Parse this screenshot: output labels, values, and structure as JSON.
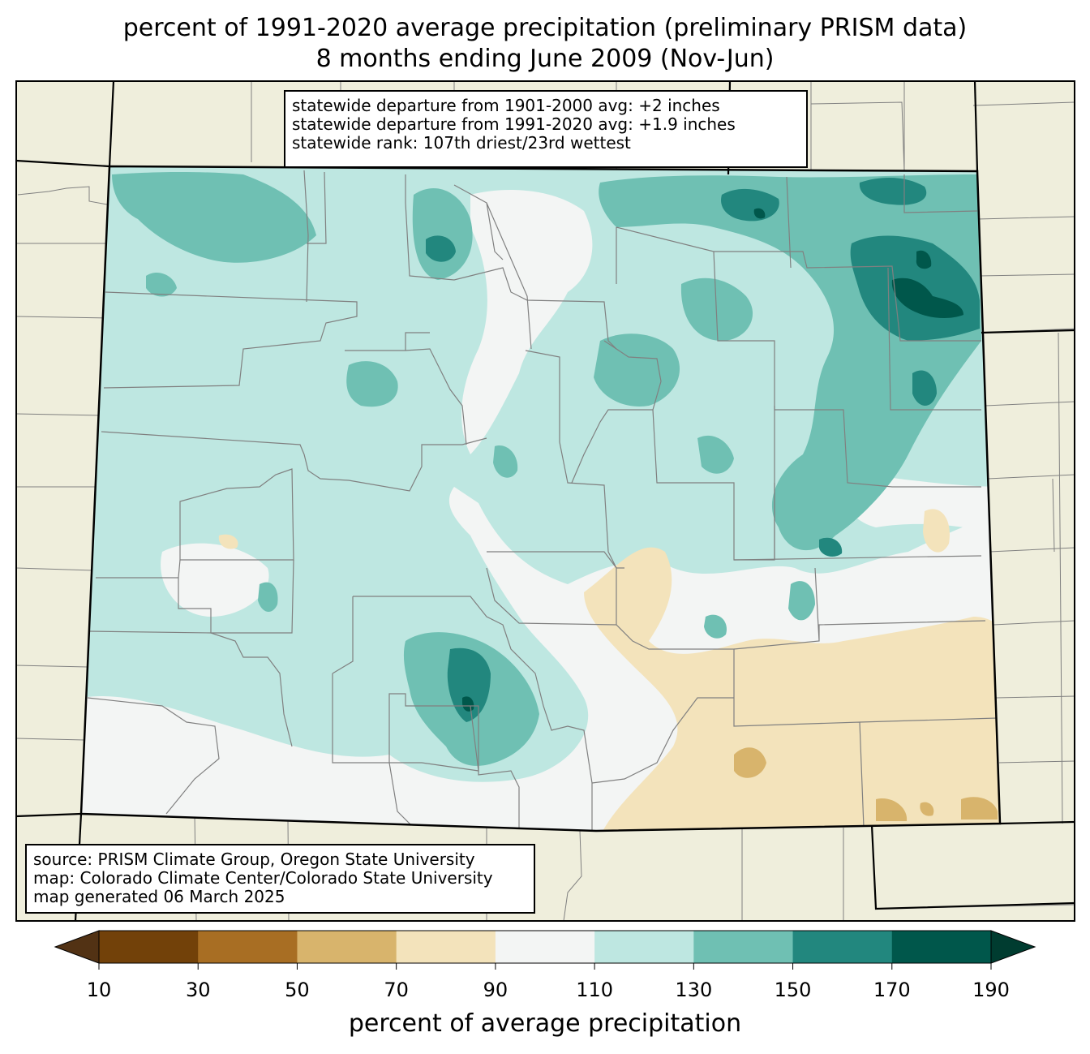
{
  "title": {
    "line1": "percent of 1991-2020 average precipitation (preliminary PRISM data)",
    "line2": "8 months ending June 2009 (Nov-Jun)"
  },
  "stats": {
    "line1": "statewide departure from 1901-2000 avg: +2 inches",
    "line2": "statewide departure from 1991-2020 avg: +1.9 inches",
    "line3": "statewide rank: 107th driest/23rd wettest"
  },
  "credits": {
    "line1": "source: PRISM Climate Group, Oregon State University",
    "line2": "map: Colorado Climate Center/Colorado State University",
    "line3": "map generated 06 March 2025"
  },
  "colorbar": {
    "label": "percent of average precipitation",
    "ticks": [
      "10",
      "30",
      "50",
      "70",
      "90",
      "110",
      "130",
      "150",
      "170",
      "190"
    ],
    "colors": [
      "#724109",
      "#a86e23",
      "#d8b46c",
      "#f3e3bb",
      "#f3f5f4",
      "#bee7e1",
      "#6fc0b3",
      "#22877e",
      "#00574b"
    ],
    "under_color": "#523214",
    "over_color": "#003c30"
  },
  "map_colors": {
    "land_outside": "#efeedc",
    "border": "#000000",
    "county_lines": "#808080"
  }
}
